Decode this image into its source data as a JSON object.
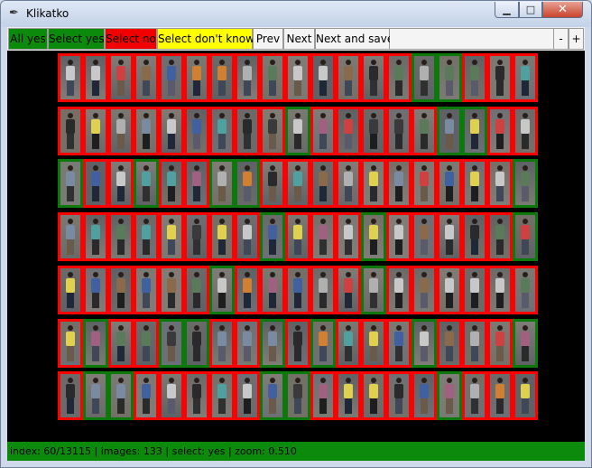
{
  "window": {
    "title": "Klikatko",
    "icon": "feather-icon"
  },
  "window_controls": {
    "minimize": "minimize-icon",
    "maximize": "maximize-icon",
    "close": "close-icon"
  },
  "toolbar": {
    "all_yes": "All yes",
    "select_yes": "Select yes",
    "select_no": "Select no",
    "select_dont_know": "Select don't know",
    "prev": "Prev",
    "next": "Next",
    "next_and_save": "Next and save",
    "zoom_out": "-",
    "zoom_in": "+"
  },
  "colors": {
    "yes": "#0b8a0b",
    "no": "#f20000",
    "dont_know": "#ffff00"
  },
  "grid": {
    "rows": [
      [
        "no",
        "no",
        "no",
        "no",
        "no",
        "no",
        "no",
        "no",
        "no",
        "no",
        "no",
        "no",
        "no",
        "no",
        "yes",
        "yes",
        "no",
        "no",
        "no"
      ],
      [
        "no",
        "no",
        "no",
        "no",
        "no",
        "no",
        "no",
        "no",
        "no",
        "yes",
        "no",
        "no",
        "no",
        "no",
        "no",
        "yes",
        "yes",
        "no",
        "no"
      ],
      [
        "yes",
        "no",
        "no",
        "yes",
        "no",
        "no",
        "yes",
        "yes",
        "no",
        "no",
        "no",
        "no",
        "no",
        "no",
        "no",
        "no",
        "no",
        "no",
        "yes"
      ],
      [
        "no",
        "no",
        "no",
        "no",
        "no",
        "no",
        "no",
        "no",
        "yes",
        "no",
        "no",
        "no",
        "yes",
        "no",
        "no",
        "no",
        "no",
        "no",
        "yes"
      ],
      [
        "no",
        "no",
        "no",
        "no",
        "no",
        "no",
        "yes",
        "no",
        "no",
        "no",
        "no",
        "no",
        "yes",
        "no",
        "no",
        "no",
        "no",
        "no",
        "no"
      ],
      [
        "no",
        "yes",
        "no",
        "no",
        "yes",
        "yes",
        "no",
        "no",
        "yes",
        "no",
        "yes",
        "no",
        "no",
        "no",
        "yes",
        "no",
        "no",
        "no",
        "yes"
      ],
      [
        "no",
        "yes",
        "yes",
        "no",
        "no",
        "no",
        "no",
        "no",
        "yes",
        "yes",
        "no",
        "no",
        "no",
        "no",
        "no",
        "yes",
        "no",
        "no",
        "no"
      ]
    ]
  },
  "status": "index: 60/13115 | images: 133 | select: yes | zoom: 0.510"
}
